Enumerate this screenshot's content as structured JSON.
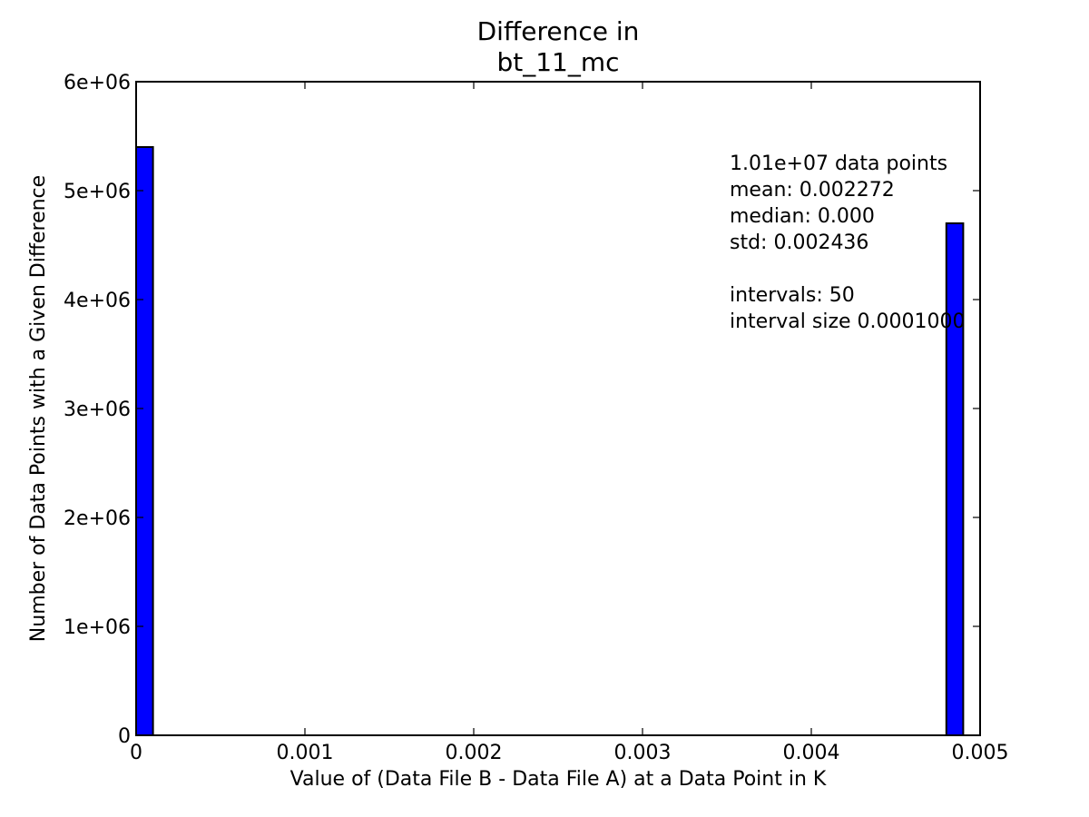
{
  "chart_data": {
    "type": "bar",
    "title": [
      "Difference in",
      "bt_11_mc"
    ],
    "xlabel": "Value of (Data File B - Data File A) at a Data Point in K",
    "ylabel": "Number of Data Points with a Given Difference",
    "xlim": [
      0,
      0.005
    ],
    "ylim": [
      0,
      6000000
    ],
    "xticks": [
      0,
      0.001,
      0.002,
      0.003,
      0.004,
      0.005
    ],
    "xtick_labels": [
      "0",
      "0.001",
      "0.002",
      "0.003",
      "0.004",
      "0.005"
    ],
    "yticks": [
      0,
      1000000,
      2000000,
      3000000,
      4000000,
      5000000,
      6000000
    ],
    "ytick_labels": [
      "0",
      "1e+06",
      "2e+06",
      "3e+06",
      "4e+06",
      "5e+06",
      "6e+06"
    ],
    "grid": false,
    "bar_color": "#0000ff",
    "bar_edge_color": "#000000",
    "bars": [
      {
        "x_start": 0.0,
        "x_end": 0.0001,
        "value": 5400000
      },
      {
        "x_start": 0.0048,
        "x_end": 0.0049,
        "value": 4700000
      }
    ],
    "annotation": [
      "1.01e+07 data points",
      "mean: 0.002272",
      "median: 0.000",
      "std: 0.002436",
      "",
      "intervals: 50",
      "interval size 0.0001000"
    ]
  }
}
